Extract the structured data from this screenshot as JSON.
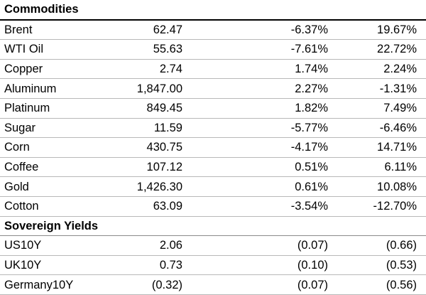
{
  "commodities": {
    "title": "Commodities",
    "rows": [
      {
        "name": "Brent",
        "price": "62.47",
        "change1": "-6.37%",
        "change2": "19.67%"
      },
      {
        "name": "WTI Oil",
        "price": "55.63",
        "change1": "-7.61%",
        "change2": "22.72%"
      },
      {
        "name": "Copper",
        "price": "2.74",
        "change1": "1.74%",
        "change2": "2.24%"
      },
      {
        "name": "Aluminum",
        "price": "1,847.00",
        "change1": "2.27%",
        "change2": "-1.31%"
      },
      {
        "name": "Platinum",
        "price": "849.45",
        "change1": "1.82%",
        "change2": "7.49%"
      },
      {
        "name": "Sugar",
        "price": "11.59",
        "change1": "-5.77%",
        "change2": "-6.46%"
      },
      {
        "name": "Corn",
        "price": "430.75",
        "change1": "-4.17%",
        "change2": "14.71%"
      },
      {
        "name": "Coffee",
        "price": "107.12",
        "change1": "0.51%",
        "change2": "6.11%"
      },
      {
        "name": "Gold",
        "price": "1,426.30",
        "change1": "0.61%",
        "change2": "10.08%"
      },
      {
        "name": "Cotton",
        "price": "63.09",
        "change1": "-3.54%",
        "change2": "-12.70%"
      }
    ]
  },
  "sovereign_yields": {
    "title": "Sovereign Yields",
    "rows": [
      {
        "name": "US10Y",
        "price": "2.06",
        "change1": "(0.07)",
        "change2": "(0.66)"
      },
      {
        "name": "UK10Y",
        "price": "0.73",
        "change1": "(0.10)",
        "change2": "(0.53)"
      },
      {
        "name": "Germany10Y",
        "price": "(0.32)",
        "change1": "(0.07)",
        "change2": "(0.56)"
      }
    ]
  }
}
